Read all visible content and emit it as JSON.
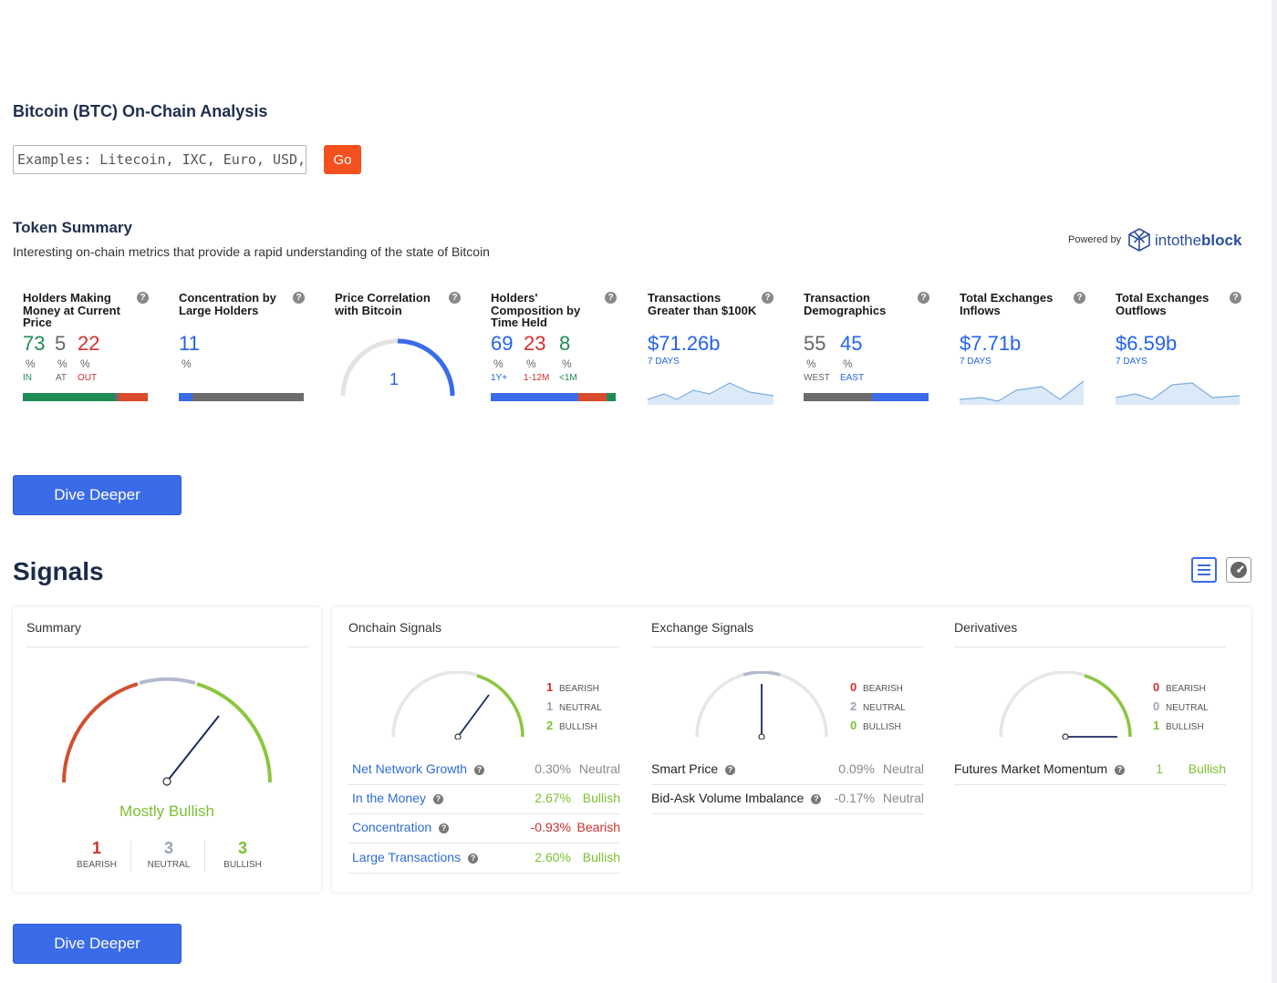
{
  "page": {
    "title": "Bitcoin (BTC) On-Chain Analysis"
  },
  "search": {
    "placeholder": "Examples: Litecoin, IXC, Euro, USD, Silver",
    "go_label": "Go"
  },
  "token_summary": {
    "title": "Token Summary",
    "subtitle": "Interesting on-chain metrics that provide a rapid understanding of the state of Bitcoin",
    "powered_by": "Powered by",
    "brand_light": "intothe",
    "brand_bold": "block"
  },
  "metrics": [
    {
      "title": "Holders Making Money at Current Price",
      "values": [
        "73",
        "5",
        "22"
      ],
      "units": [
        "%",
        "%",
        "%"
      ],
      "captions": [
        "IN",
        "AT",
        "OUT"
      ],
      "bar": [
        73,
        5,
        22
      ]
    },
    {
      "title": "Concentration by Large Holders",
      "values": [
        "11"
      ],
      "units": [
        "%"
      ],
      "bar": [
        11,
        89
      ]
    },
    {
      "title": "Price Correlation with Bitcoin",
      "value": "1",
      "gauge_fraction": 1.0
    },
    {
      "title": "Holders' Composition by Time Held",
      "values": [
        "69",
        "23",
        "8"
      ],
      "units": [
        "%",
        "%",
        "%"
      ],
      "captions": [
        "1Y+",
        "1-12M",
        "<1M"
      ],
      "bar": [
        69,
        23,
        8
      ]
    },
    {
      "title": "Transactions Greater than $100K",
      "value": "$71.26b",
      "caption": "7 DAYS"
    },
    {
      "title": "Transaction Demographics",
      "values": [
        "55",
        "45"
      ],
      "units": [
        "%",
        "%"
      ],
      "captions": [
        "WEST",
        "EAST"
      ],
      "bar": [
        55,
        45
      ]
    },
    {
      "title": "Total Exchanges Inflows",
      "value": "$7.71b",
      "caption": "7 DAYS"
    },
    {
      "title": "Total Exchanges Outflows",
      "value": "$6.59b",
      "caption": "7 DAYS"
    }
  ],
  "dive_deeper_label": "Dive Deeper",
  "signals": {
    "title": "Signals",
    "summary": {
      "title": "Summary",
      "status": "Mostly Bullish",
      "counts": [
        {
          "n": "1",
          "label": "BEARISH"
        },
        {
          "n": "3",
          "label": "NEUTRAL"
        },
        {
          "n": "3",
          "label": "BULLISH"
        }
      ]
    },
    "onchain": {
      "title": "Onchain Signals",
      "legend": [
        {
          "n": "1",
          "label": "BEARISH"
        },
        {
          "n": "1",
          "label": "NEUTRAL"
        },
        {
          "n": "2",
          "label": "BULLISH"
        }
      ],
      "rows": [
        {
          "name": "Net Network Growth",
          "pct": "0.30%",
          "status": "Neutral"
        },
        {
          "name": "In the Money",
          "pct": "2.67%",
          "status": "Bullish"
        },
        {
          "name": "Concentration",
          "pct": "-0.93%",
          "status": "Bearish"
        },
        {
          "name": "Large Transactions",
          "pct": "2.60%",
          "status": "Bullish"
        }
      ]
    },
    "exchange": {
      "title": "Exchange Signals",
      "legend": [
        {
          "n": "0",
          "label": "BEARISH"
        },
        {
          "n": "2",
          "label": "NEUTRAL"
        },
        {
          "n": "0",
          "label": "BULLISH"
        }
      ],
      "rows": [
        {
          "name": "Smart Price",
          "pct": "0.09%",
          "status": "Neutral"
        },
        {
          "name": "Bid-Ask Volume Imbalance",
          "pct": "-0.17%",
          "status": "Neutral"
        }
      ]
    },
    "derivatives": {
      "title": "Derivatives",
      "legend": [
        {
          "n": "0",
          "label": "BEARISH"
        },
        {
          "n": "0",
          "label": "NEUTRAL"
        },
        {
          "n": "1",
          "label": "BULLISH"
        }
      ],
      "rows": [
        {
          "name": "Futures Market Momentum",
          "pct": "1",
          "status": "Bullish"
        }
      ]
    }
  },
  "colors": {
    "green": "#1e8c55",
    "red": "#d0312d",
    "blue": "#2463eb",
    "bullish": "#7cc133",
    "accent_orange": "#f4511e",
    "button_blue": "#3a6be8"
  },
  "icons": {
    "help": "question-circle-icon",
    "list_view": "list-icon",
    "gauge_view": "gauge-icon",
    "brand": "cube-logo-icon"
  }
}
